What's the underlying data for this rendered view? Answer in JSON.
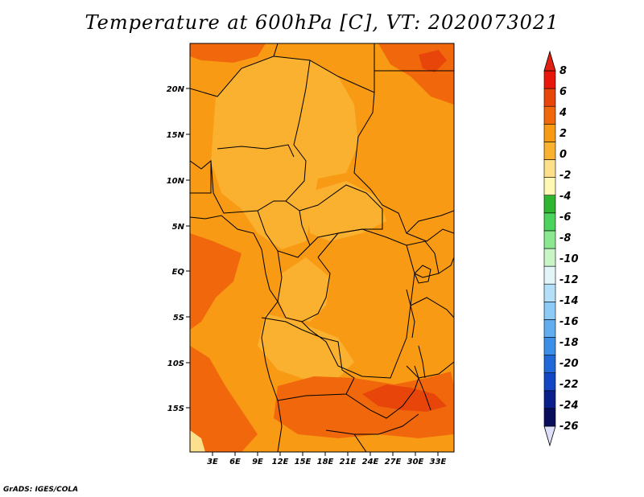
{
  "title": "Temperature at 600hPa [C], VT: 2020073021",
  "credit": "GrADS: IGES/COLA",
  "map": {
    "lat_labels": [
      "20N",
      "15N",
      "10N",
      "5N",
      "EQ",
      "5S",
      "10S",
      "15S"
    ],
    "lon_labels": [
      "3E",
      "6E",
      "9E",
      "12E",
      "15E",
      "18E",
      "21E",
      "24E",
      "27E",
      "30E",
      "33E"
    ],
    "field_colors": {
      "light_orange": "#f9b12f",
      "orange": "#f89a13",
      "dark_orange": "#f1680c",
      "red_orange": "#e8450b",
      "pale": "#fde08c"
    }
  },
  "colorbar": {
    "levels": [
      "8",
      "6",
      "4",
      "2",
      "0",
      "-2",
      "-4",
      "-6",
      "-8",
      "-10",
      "-12",
      "-14",
      "-16",
      "-18",
      "-20",
      "-22",
      "-24",
      "-26"
    ],
    "colors": [
      "#e7180b",
      "#e8450b",
      "#f1680c",
      "#f89a13",
      "#f9b12f",
      "#fde08c",
      "#fff7b4",
      "#2fb52f",
      "#4bd35e",
      "#8be891",
      "#c9f5c6",
      "#e3f5f7",
      "#b3e0f8",
      "#8dcbf6",
      "#62adf0",
      "#3c8fe8",
      "#2067d8",
      "#1246c4",
      "#0a1f8c",
      "#080e5c"
    ],
    "top_arrow_color": "#e02010",
    "bottom_arrow_color": "#dde0f8"
  }
}
